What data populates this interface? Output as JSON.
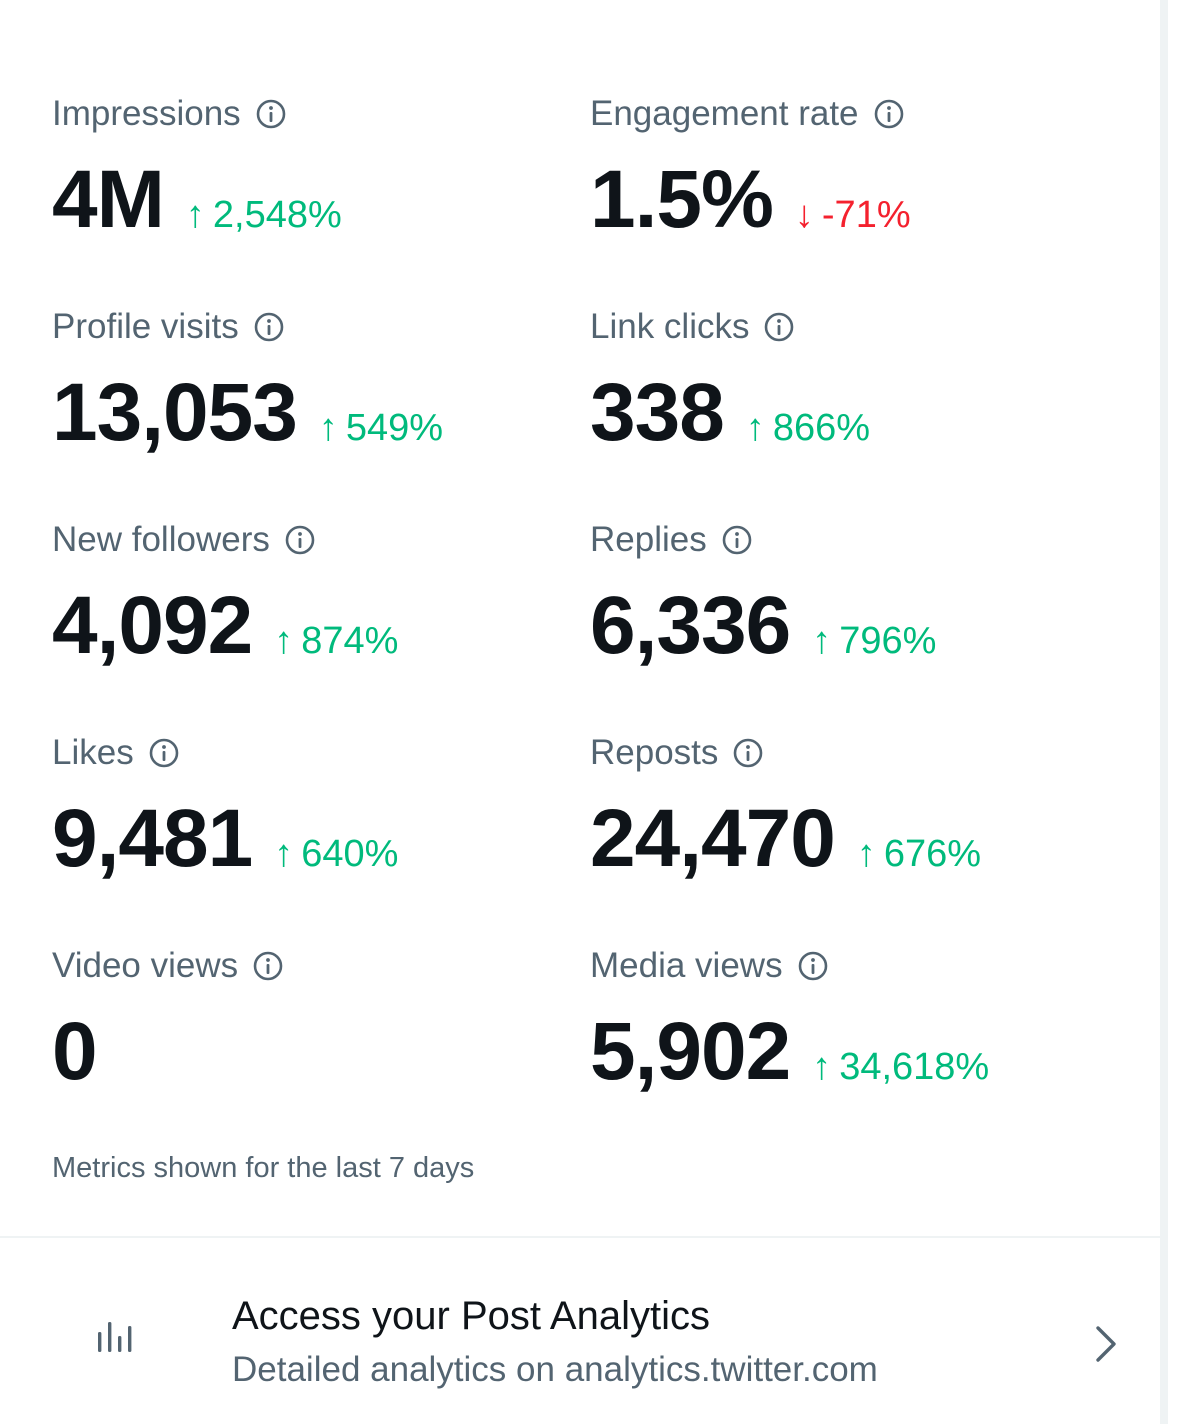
{
  "metrics": [
    {
      "label": "Impressions",
      "value": "4M",
      "change": "2,548%",
      "direction": "up"
    },
    {
      "label": "Engagement rate",
      "value": "1.5%",
      "change": "-71%",
      "direction": "down"
    },
    {
      "label": "Profile visits",
      "value": "13,053",
      "change": "549%",
      "direction": "up"
    },
    {
      "label": "Link clicks",
      "value": "338",
      "change": "866%",
      "direction": "up"
    },
    {
      "label": "New followers",
      "value": "4,092",
      "change": "874%",
      "direction": "up"
    },
    {
      "label": "Replies",
      "value": "6,336",
      "change": "796%",
      "direction": "up"
    },
    {
      "label": "Likes",
      "value": "9,481",
      "change": "640%",
      "direction": "up"
    },
    {
      "label": "Reposts",
      "value": "24,470",
      "change": "676%",
      "direction": "up"
    },
    {
      "label": "Video views",
      "value": "0",
      "change": "",
      "direction": "none"
    },
    {
      "label": "Media views",
      "value": "5,902",
      "change": "34,618%",
      "direction": "up"
    }
  ],
  "arrows": {
    "up": "↑",
    "down": "↓"
  },
  "footnote": "Metrics shown for the last 7 days",
  "analytics_link": {
    "title": "Access your Post Analytics",
    "subtitle": "Detailed analytics on analytics.twitter.com",
    "icon": "bar-chart-icon"
  },
  "colors": {
    "text_primary": "#0f1419",
    "text_secondary": "#536471",
    "positive": "#00ba7c",
    "negative": "#f4212e"
  }
}
